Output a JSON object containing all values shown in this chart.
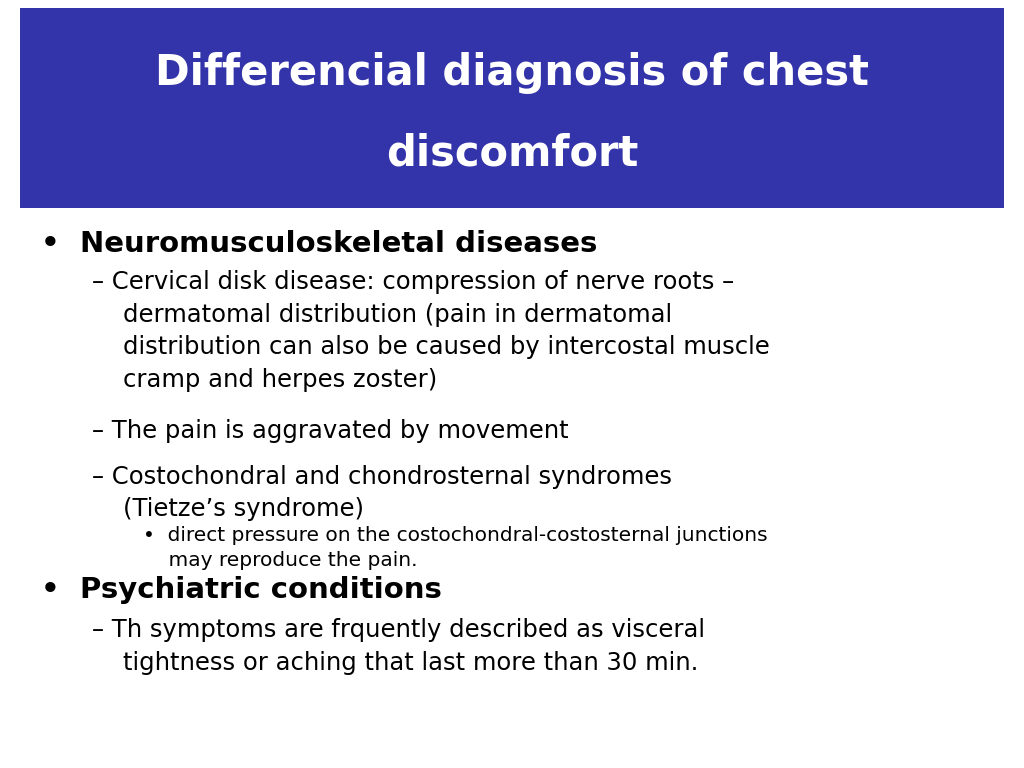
{
  "title_line1": "Differencial diagnosis of chest",
  "title_line2": "discomfort",
  "title_bg_color": "#3333AA",
  "title_text_color": "#FFFFFF",
  "bg_color": "#FFFFFF",
  "title_font_size": 30,
  "bullet1_text": "•  Neuromusculoskeletal diseases",
  "bullet1_font_size": 21,
  "sub1a_text": "– Cervical disk disease: compression of nerve roots –\n    dermatomal distribution (pain in dermatomal\n    distribution can also be caused by intercostal muscle\n    cramp and herpes zoster)",
  "sub1a_font_size": 17.5,
  "sub1b_text": "– The pain is aggravated by movement",
  "sub1b_font_size": 17.5,
  "sub1c_text": "– Costochondral and chondrosternal syndromes\n    (Tietze’s syndrome)",
  "sub1c_font_size": 17.5,
  "sub1d_text": "•  direct pressure on the costochondral-costosternal junctions\n    may reproduce the pain.",
  "sub1d_font_size": 14.5,
  "bullet2_text": "•  Psychiatric conditions",
  "bullet2_font_size": 21,
  "sub2a_text": "– Th symptoms are frquently described as visceral\n    tightness or aching that last more than 30 min.",
  "sub2a_font_size": 17.5,
  "text_color": "#000000",
  "font_family": "DejaVu Sans"
}
